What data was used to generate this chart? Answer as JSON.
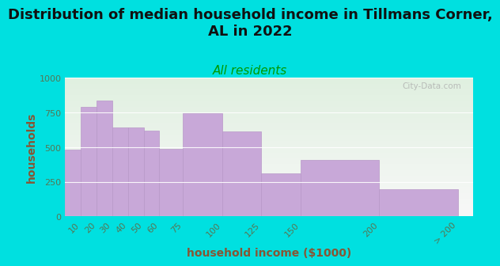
{
  "title": "Distribution of median household income in Tillmans Corner,\nAL in 2022",
  "subtitle": "All residents",
  "xlabel": "household income ($1000)",
  "ylabel": "households",
  "bar_lefts": [
    0,
    10,
    20,
    30,
    40,
    50,
    60,
    75,
    100,
    125,
    150,
    200
  ],
  "bar_widths": [
    10,
    10,
    10,
    10,
    10,
    10,
    15,
    25,
    25,
    25,
    50,
    50
  ],
  "bar_values": [
    480,
    790,
    835,
    640,
    640,
    620,
    490,
    745,
    615,
    310,
    410,
    195
  ],
  "bar_xticks": [
    10,
    20,
    30,
    40,
    50,
    60,
    75,
    100,
    125,
    150,
    200,
    250
  ],
  "bar_xticklabels": [
    "10",
    "20",
    "30",
    "40",
    "50",
    "60",
    "75",
    "100",
    "125",
    "150",
    "200",
    "> 200"
  ],
  "bar_color": "#c8a8d8",
  "bar_edge_color": "#b898c8",
  "bg_outer": "#00e0e0",
  "bg_grad_top": "#e0f0e0",
  "bg_grad_bottom": "#f8f8f8",
  "title_color": "#111111",
  "subtitle_color": "#009900",
  "tick_label_color": "#557755",
  "xlabel_color": "#885533",
  "ylabel_color": "#885533",
  "watermark": "City-Data.com",
  "ylim": [
    0,
    1000
  ],
  "yticks": [
    0,
    250,
    500,
    750,
    1000
  ],
  "xlim": [
    0,
    260
  ],
  "title_fontsize": 13,
  "subtitle_fontsize": 11,
  "tick_fontsize": 8,
  "axis_label_fontsize": 10
}
